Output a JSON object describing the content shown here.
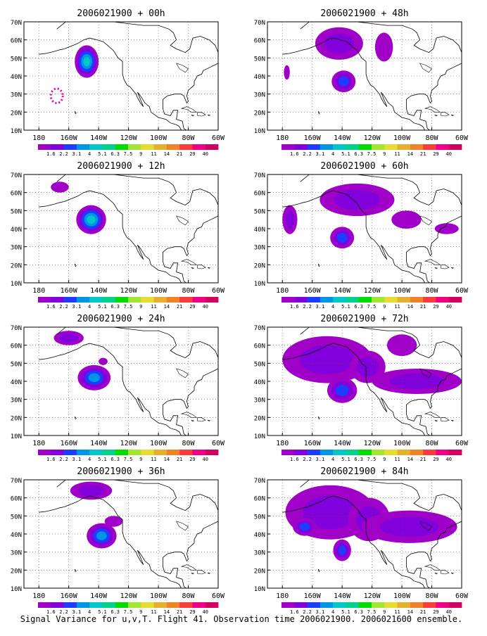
{
  "caption": "Signal Variance for u,v,T. Flight 41. Observation time 2006021900. 2006021600 ensemble.",
  "x_ticks": [
    "180",
    "160W",
    "140W",
    "120W",
    "100W",
    "80W",
    "60W"
  ],
  "y_ticks": [
    "70N",
    "60N",
    "50N",
    "40N",
    "30N",
    "20N",
    "10N"
  ],
  "colorbar": {
    "labels": [
      "1.6",
      "2.2",
      "3.1",
      "4",
      "5.1",
      "6.3",
      "7.5",
      "9",
      "11",
      "14",
      "21",
      "29",
      "40"
    ],
    "colors": [
      "#a000c8",
      "#8200dc",
      "#1e3cff",
      "#0096e6",
      "#00c8c8",
      "#00d28c",
      "#00dc00",
      "#a0e632",
      "#e6dc32",
      "#e6af2d",
      "#f08228",
      "#fa3c3c",
      "#f00082",
      "#d20060"
    ]
  },
  "panels": [
    {
      "title": "2006021900 + 00h",
      "blobs": [
        {
          "lon": -148,
          "lat": 48,
          "rx": 8,
          "ry": 9,
          "level": 4
        },
        {
          "lon": -168,
          "lat": 29,
          "rx": 4,
          "ry": 4,
          "level": 12,
          "ring": true
        }
      ]
    },
    {
      "title": "2006021900 + 12h",
      "blobs": [
        {
          "lon": -166,
          "lat": 63,
          "rx": 6,
          "ry": 3,
          "level": 0
        },
        {
          "lon": -145,
          "lat": 45,
          "rx": 10,
          "ry": 8,
          "level": 4
        }
      ]
    },
    {
      "title": "2006021900 + 24h",
      "blobs": [
        {
          "lon": -160,
          "lat": 64,
          "rx": 10,
          "ry": 4,
          "level": 1
        },
        {
          "lon": -137,
          "lat": 51,
          "rx": 3,
          "ry": 2,
          "level": 0
        },
        {
          "lon": -143,
          "lat": 42,
          "rx": 11,
          "ry": 7,
          "level": 3
        }
      ]
    },
    {
      "title": "2006021900 + 36h",
      "blobs": [
        {
          "lon": -145,
          "lat": 64,
          "rx": 14,
          "ry": 5,
          "level": 1
        },
        {
          "lon": -130,
          "lat": 47,
          "rx": 6,
          "ry": 3,
          "level": 0
        },
        {
          "lon": -138,
          "lat": 39,
          "rx": 10,
          "ry": 7,
          "level": 3
        }
      ]
    },
    {
      "title": "2006021900 + 48h",
      "blobs": [
        {
          "lon": -142,
          "lat": 58,
          "rx": 16,
          "ry": 9,
          "level": 1
        },
        {
          "lon": -112,
          "lat": 56,
          "rx": 6,
          "ry": 8,
          "level": 0
        },
        {
          "lon": -177,
          "lat": 42,
          "rx": 2,
          "ry": 4,
          "level": 0
        },
        {
          "lon": -139,
          "lat": 37,
          "rx": 8,
          "ry": 6,
          "level": 2
        }
      ]
    },
    {
      "title": "2006021900 + 60h",
      "blobs": [
        {
          "lon": -130,
          "lat": 56,
          "rx": 25,
          "ry": 9,
          "level": 1
        },
        {
          "lon": -175,
          "lat": 45,
          "rx": 5,
          "ry": 8,
          "level": 1
        },
        {
          "lon": -140,
          "lat": 35,
          "rx": 8,
          "ry": 6,
          "level": 2
        },
        {
          "lon": -97,
          "lat": 45,
          "rx": 10,
          "ry": 5,
          "level": 0
        },
        {
          "lon": -70,
          "lat": 40,
          "rx": 8,
          "ry": 3,
          "level": 0
        }
      ]
    },
    {
      "title": "2006021900 + 72h",
      "blobs": [
        {
          "lon": -150,
          "lat": 52,
          "rx": 30,
          "ry": 13,
          "level": 1
        },
        {
          "lon": -123,
          "lat": 48,
          "rx": 12,
          "ry": 9,
          "level": 1
        },
        {
          "lon": -140,
          "lat": 35,
          "rx": 10,
          "ry": 7,
          "level": 2
        },
        {
          "lon": -90,
          "lat": 40,
          "rx": 30,
          "ry": 7,
          "level": 1
        },
        {
          "lon": -100,
          "lat": 60,
          "rx": 10,
          "ry": 6,
          "level": 0
        }
      ]
    },
    {
      "title": "2006021900 + 84h",
      "blobs": [
        {
          "lon": -148,
          "lat": 52,
          "rx": 30,
          "ry": 15,
          "level": 1
        },
        {
          "lon": -122,
          "lat": 48,
          "rx": 14,
          "ry": 12,
          "level": 1
        },
        {
          "lon": -140,
          "lat": 31,
          "rx": 6,
          "ry": 6,
          "level": 2
        },
        {
          "lon": -95,
          "lat": 44,
          "rx": 32,
          "ry": 9,
          "level": 1
        },
        {
          "lon": -165,
          "lat": 44,
          "rx": 8,
          "ry": 5,
          "level": 2
        }
      ]
    }
  ]
}
